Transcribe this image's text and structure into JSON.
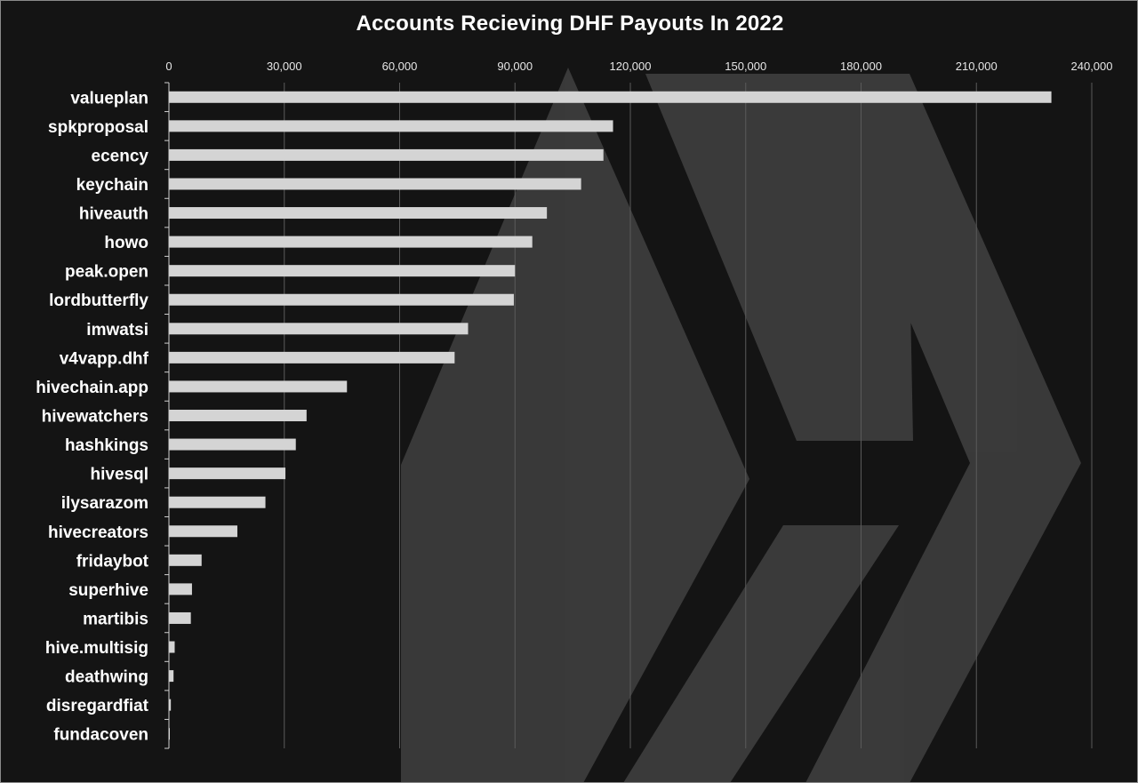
{
  "chart_data": {
    "type": "bar",
    "orientation": "horizontal",
    "title": "Accounts Recieving DHF Payouts In 2022",
    "xlabel": "",
    "ylabel": "",
    "xlim": [
      0,
      240000
    ],
    "x_ticks": [
      0,
      30000,
      60000,
      90000,
      120000,
      150000,
      180000,
      210000,
      240000
    ],
    "x_tick_labels": [
      "0",
      "30,000",
      "60,000",
      "90,000",
      "120,000",
      "150,000",
      "180,000",
      "210,000",
      "240,000"
    ],
    "grid": "vertical",
    "legend": "none",
    "categories": [
      "valueplan",
      "spkproposal",
      "ecency",
      "keychain",
      "hiveauth",
      "howo",
      "peak.open",
      "lordbutterfly",
      "imwatsi",
      "v4vapp.dhf",
      "hivechain.app",
      "hivewatchers",
      "hashkings",
      "hivesql",
      "ilysarazom",
      "hivecreators",
      "fridaybot",
      "superhive",
      "martibis",
      "hive.multisig",
      "deathwing",
      "disregardfiat",
      "fundacoven"
    ],
    "values": [
      229500,
      115500,
      113000,
      107200,
      98300,
      94500,
      90000,
      89700,
      77800,
      74300,
      46300,
      35800,
      33000,
      30300,
      25100,
      17800,
      8500,
      6000,
      5700,
      1500,
      1200,
      500,
      200
    ]
  },
  "colors": {
    "background": "#141414",
    "bar": "#d4d4d4",
    "gridline": "#5a5a5a",
    "text": "#ffffff",
    "logo": "#3a3a3a"
  },
  "watermark_icon": "hive-logo-icon"
}
